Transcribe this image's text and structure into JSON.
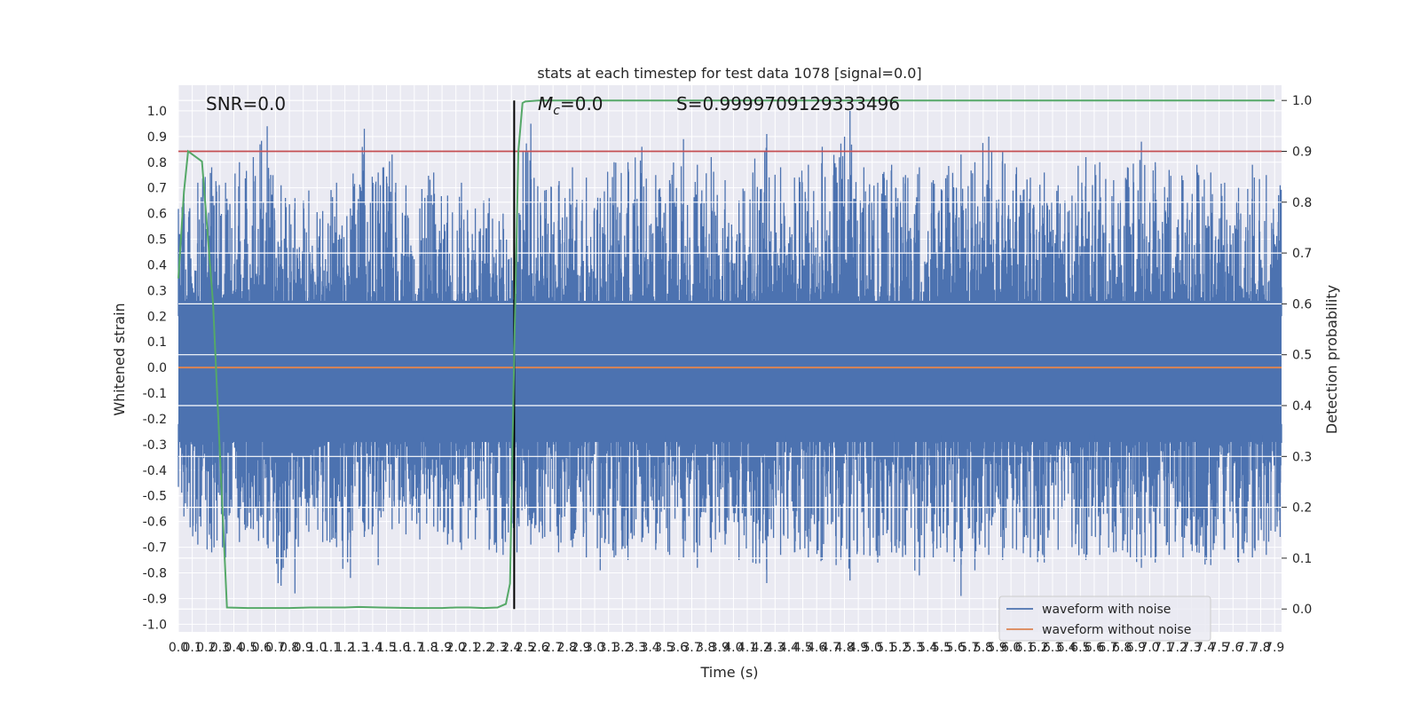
{
  "chart_data": {
    "type": "line",
    "title": "stats at each timestep for test data 1078 [signal=0.0]",
    "xlabel": "Time (s)",
    "ylabel": "Whitened strain",
    "y2label": "Detection probability",
    "xlim": [
      0.0,
      7.95
    ],
    "ylim": [
      -1.03,
      1.1
    ],
    "y2lim": [
      -0.045,
      1.03
    ],
    "x_ticks": [
      0.0,
      0.1,
      0.2,
      0.3,
      0.4,
      0.5,
      0.6,
      0.7,
      0.8,
      0.9,
      1.0,
      1.1,
      1.2,
      1.3,
      1.4,
      1.5,
      1.6,
      1.7,
      1.8,
      1.9,
      2.0,
      2.1,
      2.2,
      2.3,
      2.4,
      2.5,
      2.6,
      2.7,
      2.8,
      2.9,
      3.0,
      3.1,
      3.2,
      3.3,
      3.4,
      3.5,
      3.6,
      3.7,
      3.8,
      3.9,
      4.0,
      4.1,
      4.2,
      4.3,
      4.4,
      4.5,
      4.6,
      4.7,
      4.8,
      4.9,
      5.0,
      5.1,
      5.2,
      5.3,
      5.4,
      5.5,
      5.6,
      5.7,
      5.8,
      5.9,
      6.0,
      6.1,
      6.2,
      6.3,
      6.4,
      6.5,
      6.6,
      6.7,
      6.8,
      6.9,
      7.0,
      7.1,
      7.2,
      7.3,
      7.4,
      7.5,
      7.6,
      7.7,
      7.8,
      7.9
    ],
    "y_ticks": [
      -1.0,
      -0.9,
      -0.8,
      -0.7,
      -0.6,
      -0.5,
      -0.4,
      -0.3,
      -0.2,
      -0.1,
      0.0,
      0.1,
      0.2,
      0.3,
      0.4,
      0.5,
      0.6,
      0.7,
      0.8,
      0.9,
      1.0
    ],
    "y2_ticks": [
      0.0,
      0.1,
      0.2,
      0.3,
      0.4,
      0.5,
      0.6,
      0.7,
      0.8,
      0.9,
      1.0
    ],
    "grid": true,
    "legend_position": "lower-right",
    "annotations": {
      "snr": "SNR=0.0",
      "mc": "=0.0",
      "mc_symbol": "M",
      "mc_subscript": "c",
      "s": "S=0.9999709129333496"
    },
    "threshold_y2": 0.9,
    "marker_x": 2.42,
    "series": [
      {
        "name": "waveform with noise",
        "color": "#4c72b0",
        "envelope": {
          "x": [
            0.0,
            0.1,
            0.2,
            0.3,
            0.4,
            0.5,
            0.6,
            0.7,
            0.8,
            0.9,
            1.0,
            1.1,
            1.2,
            1.3,
            1.4,
            1.5,
            1.6,
            1.7,
            1.8,
            1.9,
            2.0,
            2.1,
            2.2,
            2.3,
            2.4,
            2.5,
            2.6,
            2.7,
            2.8,
            2.9,
            3.0,
            3.1,
            3.2,
            3.3,
            3.4,
            3.5,
            3.6,
            3.7,
            3.8,
            3.9,
            4.0,
            4.1,
            4.2,
            4.3,
            4.4,
            4.5,
            4.6,
            4.7,
            4.8,
            4.9,
            5.0,
            5.1,
            5.2,
            5.3,
            5.4,
            5.5,
            5.6,
            5.7,
            5.8,
            5.9,
            6.0,
            6.1,
            6.2,
            6.3,
            6.4,
            6.5,
            6.6,
            6.7,
            6.8,
            6.9,
            7.0,
            7.1,
            7.2,
            7.3,
            7.4,
            7.5,
            7.6,
            7.7,
            7.8,
            7.9
          ],
          "max": [
            0.68,
            0.72,
            0.78,
            0.72,
            0.8,
            0.82,
            0.94,
            0.71,
            0.66,
            0.69,
            0.61,
            0.72,
            0.62,
            0.93,
            0.76,
            0.83,
            0.71,
            0.62,
            0.76,
            0.67,
            0.72,
            0.62,
            0.66,
            0.6,
            0.56,
            0.95,
            0.69,
            0.71,
            0.78,
            0.74,
            0.66,
            0.8,
            0.8,
            0.86,
            0.75,
            0.73,
            0.89,
            0.79,
            0.82,
            0.73,
            0.65,
            0.76,
            0.91,
            0.78,
            0.74,
            0.79,
            0.86,
            0.78,
            1.0,
            0.78,
            0.72,
            0.79,
            0.75,
            0.78,
            0.73,
            0.75,
            0.83,
            0.8,
            0.9,
            0.84,
            0.78,
            0.74,
            0.76,
            0.71,
            0.67,
            0.82,
            0.8,
            0.73,
            0.78,
            0.88,
            0.8,
            0.77,
            0.73,
            0.79,
            0.76,
            0.72,
            0.7,
            0.79,
            0.75,
            0.71
          ],
          "min": [
            -0.58,
            -0.69,
            -0.72,
            -0.74,
            -0.68,
            -0.63,
            -0.69,
            -0.85,
            -0.88,
            -0.64,
            -0.68,
            -0.7,
            -0.82,
            -0.66,
            -0.77,
            -0.63,
            -0.65,
            -0.67,
            -0.62,
            -0.69,
            -0.71,
            -0.67,
            -0.71,
            -0.73,
            -0.72,
            -0.69,
            -0.66,
            -0.72,
            -0.7,
            -0.74,
            -0.79,
            -0.74,
            -0.75,
            -0.68,
            -0.71,
            -0.73,
            -0.74,
            -0.78,
            -0.72,
            -0.69,
            -0.75,
            -0.76,
            -0.84,
            -0.73,
            -0.72,
            -0.74,
            -0.75,
            -0.77,
            -0.83,
            -0.73,
            -0.76,
            -0.72,
            -0.73,
            -0.81,
            -0.74,
            -0.72,
            -0.89,
            -0.79,
            -0.73,
            -0.75,
            -0.71,
            -0.74,
            -0.76,
            -0.71,
            -0.7,
            -0.75,
            -0.73,
            -0.72,
            -0.72,
            -0.78,
            -0.76,
            -0.73,
            -0.74,
            -0.72,
            -0.77,
            -0.71,
            -0.76,
            -0.74,
            -0.73,
            -0.66
          ]
        }
      },
      {
        "name": "waveform without noise",
        "color": "#dd8452",
        "x": [
          0.0,
          7.95
        ],
        "y": [
          0.0,
          0.0
        ]
      },
      {
        "name": "",
        "color": "#55a868",
        "axis": "y2",
        "x": [
          0.0,
          0.04,
          0.07,
          0.12,
          0.17,
          0.25,
          0.35,
          0.5,
          0.7,
          0.8,
          0.95,
          1.2,
          1.3,
          1.45,
          1.7,
          1.9,
          2.0,
          2.1,
          2.2,
          2.3,
          2.36,
          2.39,
          2.42,
          2.45,
          2.48,
          2.5,
          2.6,
          3.0,
          4.0,
          5.0,
          6.0,
          7.0,
          7.9
        ],
        "y": [
          0.65,
          0.82,
          0.9,
          0.89,
          0.88,
          0.6,
          0.003,
          0.002,
          0.002,
          0.002,
          0.003,
          0.003,
          0.004,
          0.003,
          0.002,
          0.002,
          0.003,
          0.003,
          0.002,
          0.003,
          0.01,
          0.05,
          0.5,
          0.9,
          0.995,
          0.998,
          1.0,
          1.0,
          1.0,
          1.0,
          1.0,
          1.0,
          1.0
        ]
      }
    ]
  }
}
